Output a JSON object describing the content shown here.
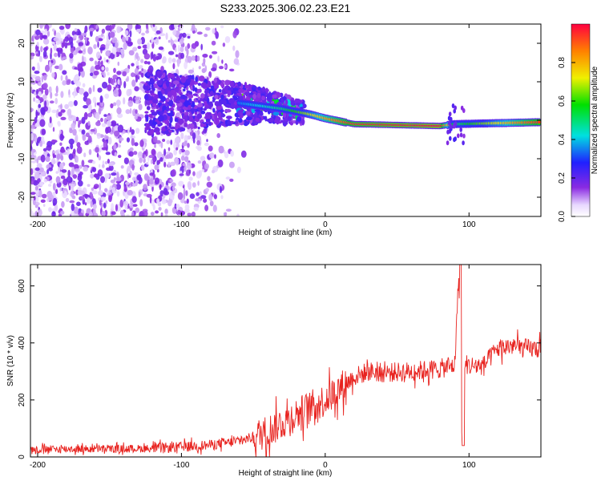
{
  "title": "S233.2025.306.02.23.E21",
  "chart_data": [
    {
      "type": "heatmap",
      "xlabel": "Height of straight line (km)",
      "ylabel": "Frequency (Hz)",
      "xlim": [
        -205,
        150
      ],
      "ylim": [
        -25,
        25
      ],
      "xticks": [
        -200,
        -100,
        0,
        100
      ],
      "yticks": [
        -20,
        -10,
        0,
        10,
        20
      ],
      "colorbar": {
        "label": "Normalized spectral amplitude",
        "range": [
          0,
          1
        ],
        "ticks": [
          0.0,
          0.2,
          0.4,
          0.6,
          0.8
        ]
      },
      "ridge": [
        {
          "x": -60,
          "freq": 4.5,
          "amp": 0.35
        },
        {
          "x": -30,
          "freq": 3.0,
          "amp": 0.5
        },
        {
          "x": -10,
          "freq": 1.5,
          "amp": 0.7
        },
        {
          "x": 0,
          "freq": 0.5,
          "amp": 0.8
        },
        {
          "x": 20,
          "freq": -1.0,
          "amp": 0.95
        },
        {
          "x": 80,
          "freq": -1.5,
          "amp": 1.0
        },
        {
          "x": 90,
          "freq": -1.0,
          "amp": 0.5
        },
        {
          "x": 150,
          "freq": -0.5,
          "amp": 0.95
        }
      ]
    },
    {
      "type": "line",
      "xlabel": "Height of straight line (km)",
      "ylabel": "SNR (10 * v/v)",
      "xlim": [
        -205,
        150
      ],
      "ylim": [
        0,
        675
      ],
      "xticks": [
        -200,
        -100,
        0,
        100
      ],
      "yticks": [
        0,
        200,
        400,
        600
      ],
      "color": "#e8231f",
      "series": [
        {
          "name": "SNR",
          "x": [
            -205,
            -180,
            -150,
            -120,
            -100,
            -80,
            -60,
            -50,
            -40,
            -30,
            -20,
            -10,
            0,
            10,
            20,
            30,
            40,
            60,
            80,
            90,
            93,
            95,
            97,
            100,
            110,
            120,
            130,
            140,
            150
          ],
          "y": [
            25,
            28,
            28,
            30,
            35,
            42,
            55,
            70,
            90,
            120,
            150,
            175,
            200,
            240,
            280,
            300,
            295,
            300,
            310,
            320,
            650,
            50,
            330,
            320,
            320,
            380,
            390,
            380,
            380
          ]
        }
      ]
    }
  ]
}
